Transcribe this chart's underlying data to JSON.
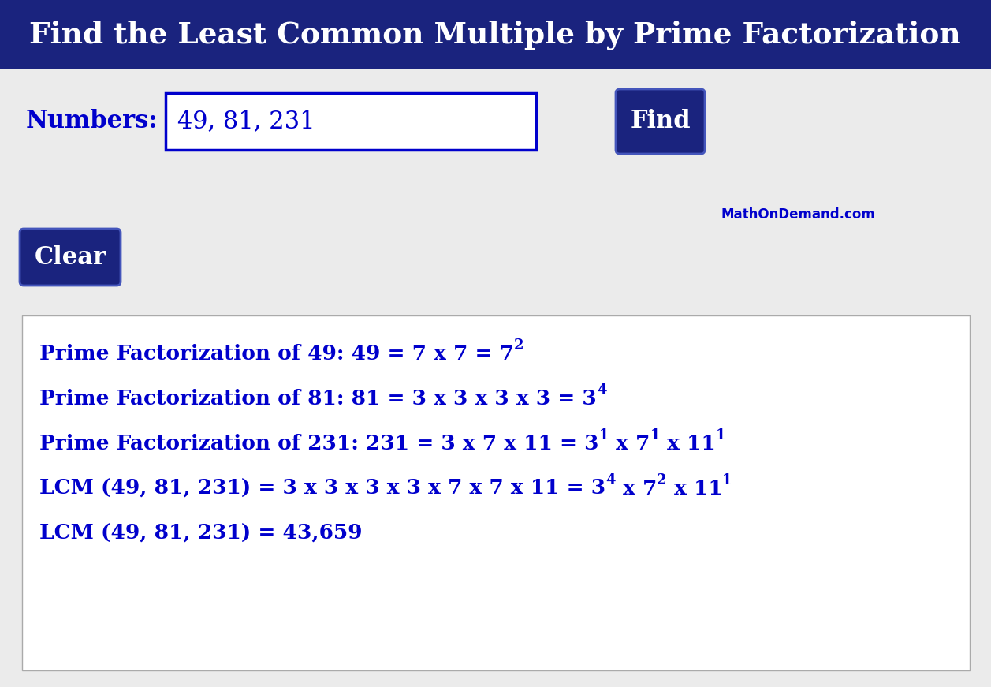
{
  "title": "Find the Least Common Multiple by Prime Factorization",
  "title_bg": "#1a237e",
  "title_color": "#ffffff",
  "bg_color": "#ebebeb",
  "white_color": "#ffffff",
  "blue_color": "#0000cc",
  "dark_blue": "#1a237e",
  "numbers_label": "Numbers:",
  "numbers_value": "49, 81, 231",
  "find_btn": "Find",
  "clear_btn": "Clear",
  "watermark": "MathOnDemand.com",
  "title_fontsize": 27,
  "label_fontsize": 22,
  "content_fontsize": 19,
  "sup_fontsize": 13,
  "watermark_fontsize": 12
}
